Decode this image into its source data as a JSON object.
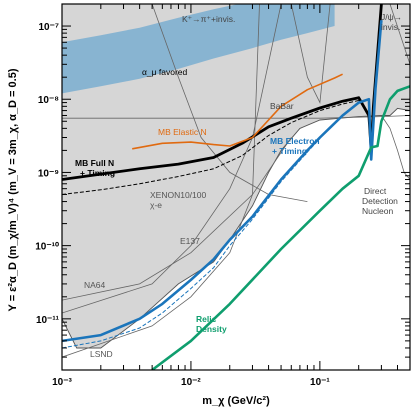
{
  "chart_data": {
    "type": "line",
    "xlabel": "m_χ (GeV/c²)",
    "ylabel": "Y = ε²α_D (m_χ/m_V)⁴ (m_V = 3m_χ, α_D = 0.5)",
    "xscale": "log",
    "yscale": "log",
    "xlim": [
      0.001,
      0.5
    ],
    "ylim": [
      2e-12,
      2e-07
    ],
    "x_ticks": [
      {
        "value": 0.001,
        "label": "10⁻³"
      },
      {
        "value": 0.01,
        "label": "10⁻²"
      },
      {
        "value": 0.1,
        "label": "10⁻¹"
      }
    ],
    "y_ticks": [
      {
        "value": 1e-11,
        "label": "10⁻¹¹"
      },
      {
        "value": 1e-10,
        "label": "10⁻¹⁰"
      },
      {
        "value": 1e-09,
        "label": "10⁻⁹"
      },
      {
        "value": 1e-08,
        "label": "10⁻⁸"
      },
      {
        "value": 1e-07,
        "label": "10⁻⁷"
      }
    ],
    "colors": {
      "excluded": "#d6d6d6",
      "alpha_band": "#7fb0d0",
      "mb_full": "#000000",
      "mb_elastic": "#e06a10",
      "mb_electron": "#1b75bb",
      "relic": "#0f9e6e",
      "boundary": "#555555"
    },
    "annotations": {
      "kpinu": "K⁺→π⁺+invis.",
      "jpsi_line1": "J/ψ→",
      "jpsi_line2": "invis.",
      "alpha_mu": "α_μ favored",
      "babar": "BaBar",
      "mb_elastic": "MB Elastic N",
      "mb_full_line1": "MB Full N",
      "mb_full_line2": "+ Timing",
      "mb_electron_line1": "MB Electron",
      "mb_electron_line2": "+ Timing",
      "xenon_line1": "XENON10/100",
      "xenon_line2": "χ-e",
      "e137": "E137",
      "na64": "NA64",
      "lsnd": "LSND",
      "relic_line1": "Relic",
      "relic_line2": "Density",
      "ddn_line1": "Direct",
      "ddn_line2": "Detection",
      "ddn_line3": "Nucleon"
    },
    "series": [
      {
        "name": "MB Full N + Timing",
        "style": "solid",
        "x": [
          0.001,
          0.002,
          0.004,
          0.008,
          0.015,
          0.025,
          0.04,
          0.06,
          0.1,
          0.15,
          0.2,
          0.24,
          0.25,
          0.26,
          0.3
        ],
        "y": [
          8e-10,
          9.5e-10,
          1.12e-09,
          1.3e-09,
          1.6e-09,
          2.5e-09,
          4.2e-09,
          5.5e-09,
          7.6e-09,
          9.4e-09,
          1.05e-08,
          6e-09,
          2e-09,
          8e-09,
          2e-07
        ]
      },
      {
        "name": "MB Full N (dashed)",
        "style": "dashed",
        "x": [
          0.001,
          0.002,
          0.004,
          0.008,
          0.015,
          0.025,
          0.04,
          0.06,
          0.1,
          0.15,
          0.2
        ],
        "y": [
          5e-10,
          5.8e-10,
          7e-10,
          8.8e-10,
          1.12e-09,
          1.7e-09,
          3.2e-09,
          4.8e-09,
          7e-09,
          8.6e-09,
          9.6e-09
        ]
      },
      {
        "name": "MB Elastic N",
        "style": "solid",
        "x": [
          0.0035,
          0.006,
          0.01,
          0.015,
          0.02,
          0.03,
          0.05,
          0.08,
          0.1,
          0.13,
          0.15
        ],
        "y": [
          2.1e-09,
          2.5e-09,
          2.6e-09,
          2.4e-09,
          2.3e-09,
          3e-09,
          8e-09,
          1.35e-08,
          1.6e-08,
          1.95e-08,
          2.2e-08
        ]
      },
      {
        "name": "MB Electron + Timing",
        "style": "solid",
        "x": [
          0.001,
          0.002,
          0.004,
          0.006,
          0.01,
          0.015,
          0.02,
          0.03,
          0.05,
          0.08,
          0.1,
          0.15,
          0.2,
          0.24,
          0.25,
          0.27,
          0.3
        ],
        "y": [
          5e-12,
          6e-12,
          1e-11,
          1.6e-11,
          3.4e-11,
          6.5e-11,
          1.2e-10,
          2.5e-10,
          8e-10,
          2e-09,
          3e-09,
          6e-09,
          9e-09,
          1e-08,
          1.5e-09,
          1.4e-08,
          1.2e-07
        ]
      },
      {
        "name": "MB Electron (dashed)",
        "style": "dashed",
        "x": [
          0.001,
          0.002,
          0.004,
          0.006,
          0.01,
          0.015,
          0.02,
          0.03,
          0.05,
          0.08,
          0.1
        ],
        "y": [
          4e-12,
          5e-12,
          7.5e-12,
          1.2e-11,
          2.6e-11,
          5e-11,
          1e-10,
          2.3e-10,
          7.5e-10,
          1.9e-09,
          2.9e-09
        ]
      },
      {
        "name": "Relic Density",
        "style": "solid",
        "x": [
          0.005,
          0.01,
          0.02,
          0.05,
          0.1,
          0.15,
          0.2,
          0.25,
          0.28,
          0.3,
          0.35,
          0.4,
          0.5
        ],
        "y": [
          2e-12,
          5e-12,
          1.6e-11,
          9e-11,
          3e-10,
          6e-10,
          9e-10,
          2.2e-09,
          2.3e-09,
          5e-09,
          1e-08,
          1.3e-08,
          1.5e-08
        ]
      }
    ]
  }
}
